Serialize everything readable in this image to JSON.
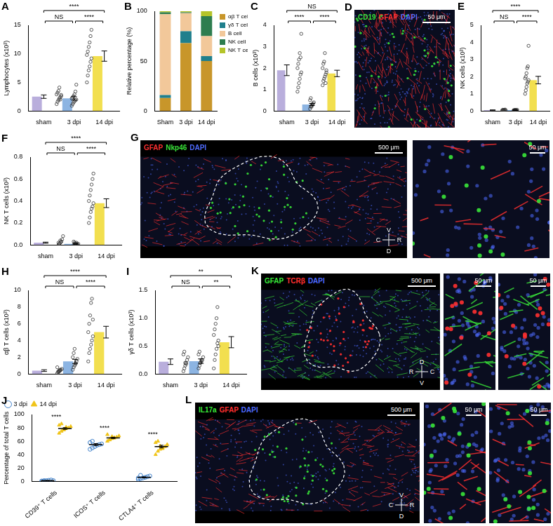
{
  "chart_data": [
    {
      "panel": "A",
      "type": "bar",
      "categories": [
        "sham",
        "3 dpi",
        "14 dpi"
      ],
      "values": [
        2.5,
        2.2,
        9.6
      ],
      "errors": [
        0.3,
        0.3,
        0.9
      ],
      "points": [
        [
          1.2,
          1.6,
          1.9,
          2.2,
          2.4,
          2.6,
          2.9,
          3.2,
          3.5,
          4.1,
          2.0,
          2.8
        ],
        [
          0.9,
          1.2,
          1.5,
          1.7,
          1.9,
          2.0,
          2.2,
          2.4,
          2.6,
          2.9,
          3.4,
          4.6
        ],
        [
          5.0,
          6.2,
          7.1,
          7.8,
          8.6,
          9.2,
          9.8,
          10.4,
          11.2,
          12.0,
          13.1,
          14.2
        ]
      ],
      "colors": [
        "#b9aedc",
        "#8cb4e2",
        "#f2df4f"
      ],
      "y_label": "Lymphocytes (x10³)",
      "ylim": [
        0,
        15
      ],
      "yticks": [
        0,
        5,
        10,
        15
      ],
      "significance": [
        {
          "from": "sham",
          "to": "3 dpi",
          "label": "NS"
        },
        {
          "from": "sham",
          "to": "14 dpi",
          "label": "****"
        },
        {
          "from": "3 dpi",
          "to": "14 dpi",
          "label": "****"
        }
      ]
    },
    {
      "panel": "B",
      "type": "bar",
      "stacked": true,
      "categories": [
        "Sham",
        "3 dpi",
        "14 dpi"
      ],
      "series": [
        {
          "name": "αβ T cell",
          "color": "#c8962a",
          "values": [
            13,
            68,
            50
          ]
        },
        {
          "name": "γδ T cell",
          "color": "#1f7f8c",
          "values": [
            3,
            12,
            5
          ]
        },
        {
          "name": "B cell",
          "color": "#f2c89a",
          "values": [
            81,
            18,
            20
          ]
        },
        {
          "name": "NK cell",
          "color": "#2e7d4f",
          "values": [
            2,
            1,
            20
          ]
        },
        {
          "name": "NK T cell",
          "color": "#b5c42a",
          "values": [
            1,
            1,
            5
          ]
        }
      ],
      "y_label": "Relative percentage (%)",
      "ylim": [
        0,
        100
      ],
      "yticks": [
        0,
        50,
        100
      ],
      "legend": "right"
    },
    {
      "panel": "C",
      "type": "bar",
      "categories": [
        "sham",
        "3 dpi",
        "14 dpi"
      ],
      "values": [
        1.9,
        0.3,
        1.75
      ],
      "errors": [
        0.25,
        0.05,
        0.15
      ],
      "points": [
        [
          0.9,
          1.1,
          1.3,
          1.5,
          1.7,
          1.8,
          2.0,
          2.2,
          2.4,
          2.7,
          2.5,
          3.6
        ],
        [
          0.1,
          0.2,
          0.25,
          0.3,
          0.35,
          0.4,
          0.5,
          0.6,
          0.2,
          0.3
        ],
        [
          1.2,
          1.4,
          1.5,
          1.6,
          1.7,
          1.8,
          2.0,
          2.2,
          2.3,
          2.7,
          1.3,
          1.9
        ]
      ],
      "colors": [
        "#b9aedc",
        "#8cb4e2",
        "#f2df4f"
      ],
      "y_label": "B cells (x10³)",
      "ylim": [
        0,
        4
      ],
      "yticks": [
        0,
        1,
        2,
        3,
        4
      ],
      "significance": [
        {
          "from": "sham",
          "to": "3 dpi",
          "label": "****"
        },
        {
          "from": "sham",
          "to": "14 dpi",
          "label": "NS"
        },
        {
          "from": "3 dpi",
          "to": "14 dpi",
          "label": "****"
        }
      ]
    },
    {
      "panel": "E",
      "type": "bar",
      "categories": [
        "sham",
        "3 dpi",
        "14 dpi"
      ],
      "values": [
        0.05,
        0.05,
        1.8
      ],
      "errors": [
        0.01,
        0.01,
        0.22
      ],
      "points": [
        [
          0.02,
          0.03,
          0.05,
          0.06,
          0.08,
          0.04,
          0.05,
          0.07,
          0.03,
          0.06
        ],
        [
          0.02,
          0.04,
          0.05,
          0.06,
          0.03,
          0.07,
          0.05,
          0.04,
          0.06,
          0.05
        ],
        [
          1.0,
          1.2,
          1.4,
          1.6,
          1.7,
          1.8,
          1.9,
          2.0,
          2.2,
          2.5,
          2.6,
          3.8
        ]
      ],
      "colors": [
        "#b9aedc",
        "#8cb4e2",
        "#f2df4f"
      ],
      "y_label": "NK cells (x10³)",
      "ylim": [
        0,
        5
      ],
      "yticks": [
        0,
        1,
        2,
        3,
        4,
        5
      ],
      "significance": [
        {
          "from": "sham",
          "to": "3 dpi",
          "label": "NS"
        },
        {
          "from": "sham",
          "to": "14 dpi",
          "label": "****"
        },
        {
          "from": "3 dpi",
          "to": "14 dpi",
          "label": "****"
        }
      ]
    },
    {
      "panel": "F",
      "type": "bar",
      "categories": [
        "sham",
        "3 dpi",
        "14 dpi"
      ],
      "values": [
        0.02,
        0.01,
        0.38
      ],
      "errors": [
        0.005,
        0.003,
        0.04
      ],
      "points": [
        [
          0.0,
          0.01,
          0.02,
          0.03,
          0.05,
          0.08,
          0.02,
          0.01,
          0.04,
          0.03
        ],
        [
          0.0,
          0.01,
          0.01,
          0.02,
          0.0,
          0.01,
          0.03,
          0.02,
          0.01,
          0.01
        ],
        [
          0.2,
          0.25,
          0.3,
          0.33,
          0.35,
          0.38,
          0.4,
          0.45,
          0.5,
          0.55,
          0.6,
          0.65
        ]
      ],
      "colors": [
        "#b9aedc",
        "#8cb4e2",
        "#f2df4f"
      ],
      "y_label": "NK T cells (x10³)",
      "ylim": [
        0,
        0.8
      ],
      "yticks": [
        {
          "value": 0,
          "label": "0.0"
        },
        0.2,
        0.4,
        0.6,
        0.8
      ],
      "significance": [
        {
          "from": "sham",
          "to": "3 dpi",
          "label": "NS"
        },
        {
          "from": "sham",
          "to": "14 dpi",
          "label": "****"
        },
        {
          "from": "3 dpi",
          "to": "14 dpi",
          "label": "****"
        }
      ]
    },
    {
      "panel": "H",
      "type": "bar",
      "categories": [
        "sham",
        "3 dpi",
        "14 dpi"
      ],
      "values": [
        0.4,
        1.5,
        5.0
      ],
      "errors": [
        0.1,
        0.25,
        0.7
      ],
      "points": [
        [
          0.1,
          0.2,
          0.3,
          0.4,
          0.5,
          0.6,
          0.8,
          0.3,
          0.4,
          0.5
        ],
        [
          0.5,
          0.8,
          1.0,
          1.2,
          1.5,
          1.8,
          2.0,
          2.5,
          3.0,
          1.3
        ],
        [
          1.5,
          2.5,
          3.0,
          3.5,
          4.0,
          4.5,
          5.0,
          6.0,
          7.0,
          8.5,
          9.0,
          6.5
        ]
      ],
      "colors": [
        "#b9aedc",
        "#8cb4e2",
        "#f2df4f"
      ],
      "y_label": "αβ T cells (x10³)",
      "ylim": [
        0,
        10
      ],
      "yticks": [
        0,
        2,
        4,
        6,
        8,
        10
      ],
      "significance": [
        {
          "from": "sham",
          "to": "3 dpi",
          "label": "NS"
        },
        {
          "from": "sham",
          "to": "14 dpi",
          "label": "****"
        },
        {
          "from": "3 dpi",
          "to": "14 dpi",
          "label": "****"
        }
      ]
    },
    {
      "panel": "I",
      "type": "bar",
      "categories": [
        "sham",
        "3 dpi",
        "14 dpi"
      ],
      "values": [
        0.22,
        0.23,
        0.57
      ],
      "errors": [
        0.05,
        0.04,
        0.1
      ],
      "points": [
        [
          0.05,
          0.1,
          0.15,
          0.2,
          0.25,
          0.3,
          0.35,
          0.4,
          0.2,
          0.18
        ],
        [
          0.1,
          0.15,
          0.2,
          0.22,
          0.25,
          0.3,
          0.35,
          0.4,
          0.2,
          0.25
        ],
        [
          0.1,
          0.25,
          0.35,
          0.45,
          0.55,
          0.6,
          0.7,
          0.8,
          0.9,
          1.0,
          1.2,
          0.5
        ]
      ],
      "colors": [
        "#b9aedc",
        "#8cb4e2",
        "#f2df4f"
      ],
      "y_label": "γδ T cells (x10³)",
      "ylim": [
        0,
        1.5
      ],
      "yticks": [
        {
          "value": 0,
          "label": "0.0"
        },
        0.5,
        {
          "value": 1,
          "label": "1.0"
        },
        1.5
      ],
      "significance": [
        {
          "from": "sham",
          "to": "3 dpi",
          "label": "NS"
        },
        {
          "from": "sham",
          "to": "14 dpi",
          "label": "**"
        },
        {
          "from": "3 dpi",
          "to": "14 dpi",
          "label": "**"
        }
      ]
    },
    {
      "panel": "J",
      "type": "scatter",
      "categories": [
        "CD39⁺ T cells",
        "ICOS⁺ T cells",
        "CTLA4⁺ T cells"
      ],
      "series": [
        {
          "name": "3 dpi",
          "color": "#3a7dc9",
          "marker": "open_circle",
          "values": [
            1,
            55,
            6
          ],
          "errors": [
            0.3,
            1.5,
            0.8
          ],
          "points": [
            [
              0,
              0.5,
              1,
              1.5,
              2,
              1,
              0.5,
              1
            ],
            [
              48,
              50,
              52,
              54,
              55,
              56,
              58,
              60
            ],
            [
              3,
              4,
              5,
              6,
              7,
              8,
              5,
              9
            ]
          ]
        },
        {
          "name": "14 dpi",
          "color": "#f0c419",
          "marker": "triangle",
          "values": [
            79,
            65,
            52
          ],
          "errors": [
            1.3,
            1.0,
            2.0
          ],
          "points": [
            [
              72,
              75,
              77,
              79,
              80,
              82,
              84,
              86,
              78,
              81
            ],
            [
              60,
              62,
              64,
              65,
              66,
              68,
              70,
              63,
              67,
              65
            ],
            [
              40,
              45,
              48,
              50,
              52,
              55,
              58,
              60,
              53,
              49
            ]
          ]
        }
      ],
      "y_label": "Percentage of total T cells",
      "ylim": [
        0,
        100
      ],
      "yticks": [
        0,
        20,
        40,
        60,
        80,
        100
      ],
      "legend": "top-left",
      "significance": [
        {
          "category": "CD39⁺ T cells",
          "label": "****"
        },
        {
          "category": "ICOS⁺ T cells",
          "label": "****"
        },
        {
          "category": "CTLA4⁺ T cells",
          "label": "****"
        }
      ]
    }
  ],
  "images": [
    {
      "panel": "D",
      "channels": [
        {
          "label": "CD19",
          "color": "#39e639"
        },
        {
          "label": "GFAP",
          "color": "#ff3030"
        },
        {
          "label": "DAPI",
          "color": "#4f6bff"
        }
      ],
      "views": [
        {
          "scale_bar": "50 μm"
        }
      ]
    },
    {
      "panel": "G",
      "channels": [
        {
          "label": "GFAP",
          "color": "#ff3030"
        },
        {
          "label": "Nkp46",
          "color": "#39e639"
        },
        {
          "label": "DAPI",
          "color": "#4f6bff"
        }
      ],
      "views": [
        {
          "scale_bar": "500 μm"
        },
        {
          "scale_bar": "50 μm"
        }
      ],
      "orientation": {
        "top": "V",
        "bottom": "D",
        "left": "C",
        "right": "R"
      }
    },
    {
      "panel": "K",
      "channels": [
        {
          "label": "GFAP",
          "color": "#39e639"
        },
        {
          "label": "TCRβ",
          "color": "#ff3030"
        },
        {
          "label": "DAPI",
          "color": "#4f6bff"
        }
      ],
      "views": [
        {
          "scale_bar": "500 μm"
        },
        {
          "scale_bar": "50 μm"
        },
        {
          "scale_bar": "50 μm"
        }
      ],
      "orientation": {
        "top": "D",
        "bottom": "V",
        "left": "R",
        "right": "C"
      }
    },
    {
      "panel": "L",
      "channels": [
        {
          "label": "IL17a",
          "color": "#39e639"
        },
        {
          "label": "GFAP",
          "color": "#ff3030"
        },
        {
          "label": "DAPI",
          "color": "#4f6bff"
        }
      ],
      "views": [
        {
          "scale_bar": "500 μm"
        },
        {
          "scale_bar": "50 μm"
        },
        {
          "scale_bar": "50 μm"
        }
      ],
      "orientation": {
        "top": "V",
        "bottom": "D",
        "left": "C",
        "right": "R"
      }
    }
  ]
}
